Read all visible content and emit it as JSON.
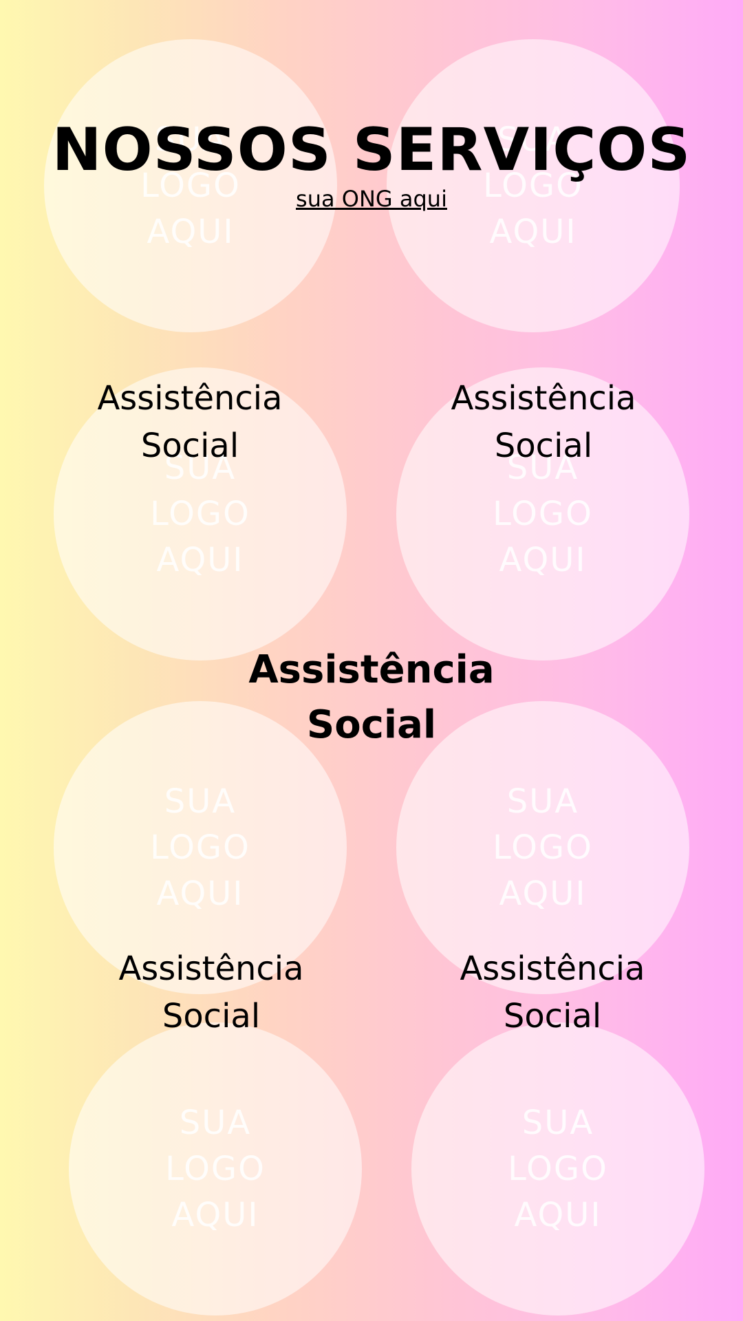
{
  "header": {
    "title": "NOSSOS SERVIÇOS",
    "subtitle": "sua ONG aqui"
  },
  "logo_placeholder": "SUA\nLOGO\nAQUI",
  "services": {
    "row1_left": "Assistência\nSocial",
    "row1_right": "Assistência\nSocial",
    "center": "Assistência\nSocial",
    "row3_left": "Assistência\nSocial",
    "row3_right": "Assistência\nSocial"
  },
  "colors": {
    "gradient_left": "#fff8b0",
    "gradient_right": "#ffaaf7",
    "circle_fill": "#ffffff",
    "text": "#000000"
  }
}
